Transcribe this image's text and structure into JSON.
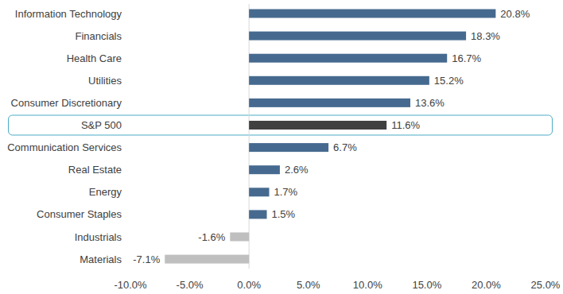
{
  "chart_data": {
    "type": "bar",
    "orientation": "horizontal",
    "categories": [
      "Information Technology",
      "Financials",
      "Health Care",
      "Utilities",
      "Consumer Discretionary",
      "S&P 500",
      "Communication Services",
      "Real Estate",
      "Energy",
      "Consumer Staples",
      "Industrials",
      "Materials"
    ],
    "values": [
      20.8,
      18.3,
      16.7,
      15.2,
      13.6,
      11.6,
      6.7,
      2.6,
      1.7,
      1.5,
      -1.6,
      -7.1
    ],
    "value_labels": [
      "20.8%",
      "18.3%",
      "16.7%",
      "15.2%",
      "13.6%",
      "11.6%",
      "6.7%",
      "2.6%",
      "1.7%",
      "1.5%",
      "-1.6%",
      "-7.1%"
    ],
    "colors": [
      "#466a8f",
      "#466a8f",
      "#466a8f",
      "#466a8f",
      "#466a8f",
      "#404040",
      "#466a8f",
      "#466a8f",
      "#466a8f",
      "#466a8f",
      "#bfbfbf",
      "#bfbfbf"
    ],
    "xlim": [
      -10,
      25
    ],
    "xticks": [
      {
        "value": -10,
        "label": "-10.0%"
      },
      {
        "value": -5,
        "label": "-5.0%"
      },
      {
        "value": 0,
        "label": "0.0%"
      },
      {
        "value": 5,
        "label": "5.0%"
      },
      {
        "value": 10,
        "label": "10.0%"
      },
      {
        "value": 15,
        "label": "15.0%"
      },
      {
        "value": 20,
        "label": "20.0%"
      },
      {
        "value": 25,
        "label": "25.0%"
      }
    ],
    "grid": false,
    "data_labels": true
  }
}
